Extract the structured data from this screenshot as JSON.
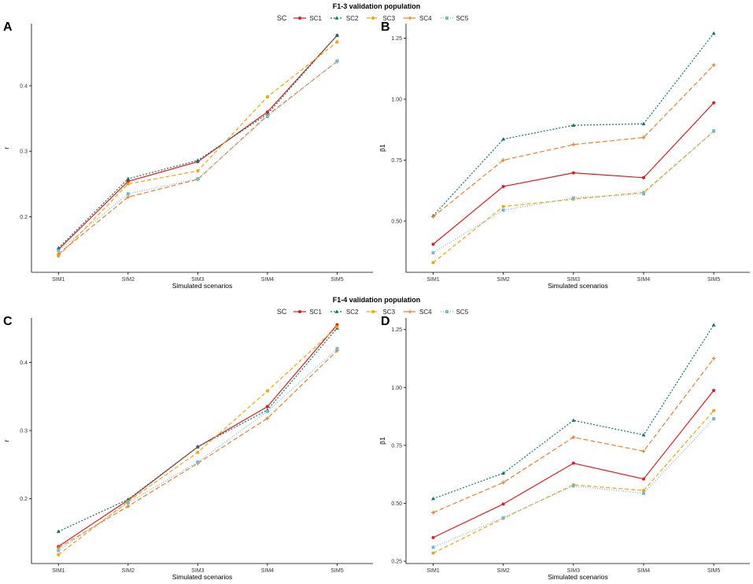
{
  "sections": [
    {
      "title": "F1-3 validation population",
      "legend_title": "SC"
    },
    {
      "title": "F1-4 validation population",
      "legend_title": "SC"
    }
  ],
  "series_styles": [
    {
      "name": "SC1",
      "color": "#e41a1c",
      "dash": "",
      "marker": "circle"
    },
    {
      "name": "SC2",
      "color": "#00796b",
      "dash": "2,2",
      "marker": "triangle"
    },
    {
      "name": "SC3",
      "color": "#f5a300",
      "dash": "5,3",
      "marker": "circle"
    },
    {
      "name": "SC4",
      "color": "#ef7f2a",
      "dash": "6,3",
      "marker": "plus"
    },
    {
      "name": "SC5",
      "color": "#6fb9dd",
      "dash": "1,2",
      "marker": "square"
    }
  ],
  "chart_data": [
    {
      "panel": "A",
      "type": "line",
      "categories": [
        "SIM1",
        "SIM2",
        "SIM3",
        "SIM4",
        "SIM5"
      ],
      "xlabel": "Simulated scenarios",
      "ylabel": "r",
      "ylim": [
        0.115,
        0.495
      ],
      "yticks": [
        0.2,
        0.3,
        0.4
      ],
      "series": [
        {
          "name": "SC1",
          "values": [
            0.15,
            0.254,
            0.284,
            0.36,
            0.477
          ]
        },
        {
          "name": "SC2",
          "values": [
            0.152,
            0.258,
            0.286,
            0.357,
            0.477
          ]
        },
        {
          "name": "SC3",
          "values": [
            0.14,
            0.25,
            0.27,
            0.383,
            0.467
          ]
        },
        {
          "name": "SC4",
          "values": [
            0.143,
            0.23,
            0.257,
            0.355,
            0.437
          ]
        },
        {
          "name": "SC5",
          "values": [
            0.148,
            0.235,
            0.258,
            0.353,
            0.438
          ]
        }
      ]
    },
    {
      "panel": "B",
      "type": "line",
      "categories": [
        "SIM1",
        "SIM2",
        "SIM3",
        "SIM4",
        "SIM5"
      ],
      "xlabel": "Simulated scenarios",
      "ylabel": "β1",
      "ylim": [
        0.29,
        1.31
      ],
      "yticks": [
        0.5,
        0.75,
        1.0,
        1.25
      ],
      "ytick_labels": [
        "0.50",
        "0.75",
        "1.00",
        "1.25"
      ],
      "series": [
        {
          "name": "SC1",
          "values": [
            0.405,
            0.642,
            0.698,
            0.678,
            0.985
          ]
        },
        {
          "name": "SC2",
          "values": [
            0.522,
            0.836,
            0.893,
            0.899,
            1.27
          ]
        },
        {
          "name": "SC3",
          "values": [
            0.33,
            0.56,
            0.59,
            0.618,
            0.868
          ]
        },
        {
          "name": "SC4",
          "values": [
            0.518,
            0.75,
            0.814,
            0.843,
            1.14
          ]
        },
        {
          "name": "SC5",
          "values": [
            0.37,
            0.545,
            0.595,
            0.612,
            0.87
          ]
        }
      ]
    },
    {
      "panel": "C",
      "type": "line",
      "categories": [
        "SIM1",
        "SIM2",
        "SIM3",
        "SIM4",
        "SIM5"
      ],
      "xlabel": "Simulated scenarios",
      "ylabel": "r",
      "ylim": [
        0.105,
        0.465
      ],
      "yticks": [
        0.2,
        0.3,
        0.4
      ],
      "series": [
        {
          "name": "SC1",
          "values": [
            0.13,
            0.198,
            0.276,
            0.335,
            0.455
          ]
        },
        {
          "name": "SC2",
          "values": [
            0.152,
            0.199,
            0.276,
            0.33,
            0.45
          ]
        },
        {
          "name": "SC3",
          "values": [
            0.118,
            0.196,
            0.268,
            0.358,
            0.452
          ]
        },
        {
          "name": "SC4",
          "values": [
            0.128,
            0.189,
            0.252,
            0.318,
            0.417
          ]
        },
        {
          "name": "SC5",
          "values": [
            0.124,
            0.194,
            0.254,
            0.328,
            0.42
          ]
        }
      ]
    },
    {
      "panel": "D",
      "type": "line",
      "categories": [
        "SIM1",
        "SIM2",
        "SIM3",
        "SIM4",
        "SIM5"
      ],
      "xlabel": "Simulated scenarios",
      "ylabel": "β1",
      "ylim": [
        0.24,
        1.3
      ],
      "yticks": [
        0.25,
        0.5,
        0.75,
        1.0,
        1.25
      ],
      "ytick_labels": [
        "0.25",
        "0.50",
        "0.75",
        "1.00",
        "1.25"
      ],
      "series": [
        {
          "name": "SC1",
          "values": [
            0.352,
            0.497,
            0.673,
            0.605,
            0.987
          ]
        },
        {
          "name": "SC2",
          "values": [
            0.52,
            0.63,
            0.858,
            0.795,
            1.27
          ]
        },
        {
          "name": "SC3",
          "values": [
            0.285,
            0.435,
            0.58,
            0.555,
            0.9
          ]
        },
        {
          "name": "SC4",
          "values": [
            0.46,
            0.59,
            0.785,
            0.725,
            1.125
          ]
        },
        {
          "name": "SC5",
          "values": [
            0.31,
            0.438,
            0.575,
            0.543,
            0.865
          ]
        }
      ]
    }
  ]
}
